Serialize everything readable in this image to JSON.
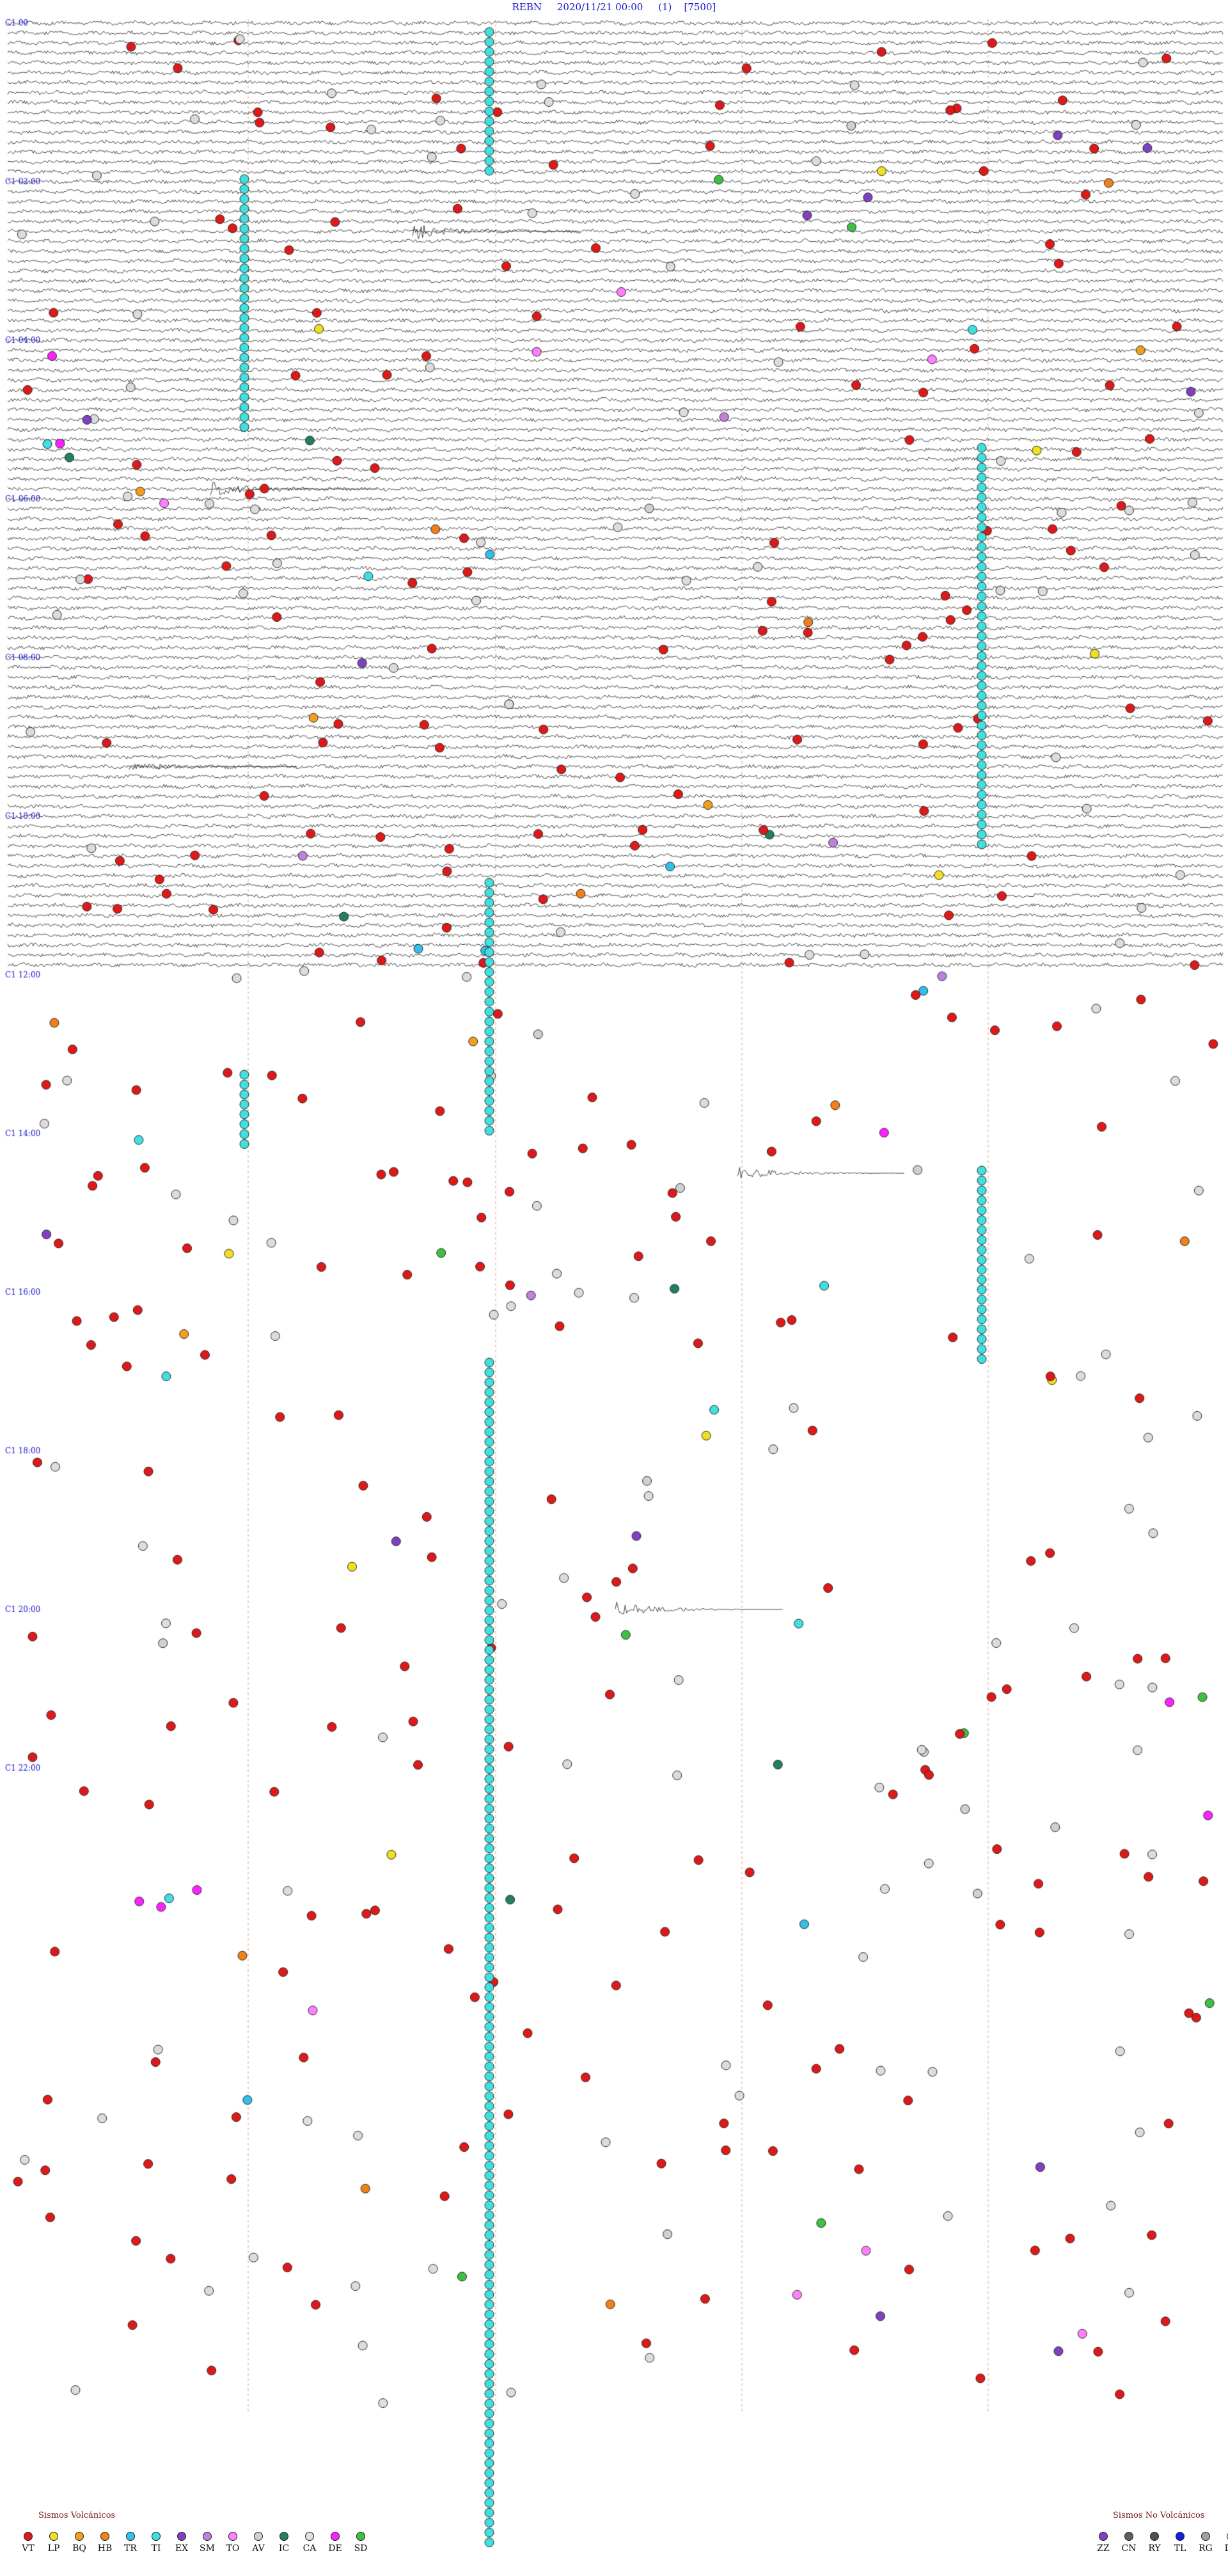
{
  "header": {
    "title": "REBN     2020/11/21 00:00     (1)    [7500]"
  },
  "chart_data": {
    "type": "seismogram",
    "station": "REBN",
    "date": "2020/11/21 00:00",
    "traces": 96,
    "hour_labels": [
      "00",
      "02:00",
      "04:00",
      "06:00",
      "08:00",
      "10:00",
      "12:00",
      "14:00",
      "16:00",
      "18:00",
      "20:00",
      "22:00"
    ],
    "events": [
      {
        "hour": 2.4,
        "minute": 20,
        "type": "VT",
        "amplitude": 0.9
      },
      {
        "hour": 5.8,
        "minute": 10,
        "type": "LP",
        "amplitude": 0.8
      },
      {
        "hour": 9.3,
        "minute": 6,
        "type": "TR",
        "amplitude": 0.6
      },
      {
        "hour": 14.2,
        "minute": 36,
        "type": "VT",
        "amplitude": 0.7
      },
      {
        "hour": 19.8,
        "minute": 30,
        "type": "HB",
        "amplitude": 0.8
      }
    ]
  },
  "legend_volcanic": {
    "title": "Sismos Volcánicos",
    "items": [
      {
        "label": "VT",
        "color": "#e01818"
      },
      {
        "label": "LP",
        "color": "#f0e020"
      },
      {
        "label": "BQ",
        "color": "#f0a020"
      },
      {
        "label": "HB",
        "color": "#f08018"
      },
      {
        "label": "TR",
        "color": "#30c0e8"
      },
      {
        "label": "TI",
        "color": "#40e0e0"
      },
      {
        "label": "EX",
        "color": "#8040c0"
      },
      {
        "label": "SM",
        "color": "#c080e0"
      },
      {
        "label": "TO",
        "color": "#ff80ff"
      },
      {
        "label": "AV",
        "color": "#d0d0d0"
      },
      {
        "label": "IC",
        "color": "#208060"
      },
      {
        "label": "CA",
        "color": "#e0e0e0"
      },
      {
        "label": "DE",
        "color": "#ff20ff"
      },
      {
        "label": "SD",
        "color": "#40c040"
      }
    ]
  },
  "legend_nonvolcanic": {
    "title": "Sismos No Volcánicos",
    "items": [
      {
        "label": "ZZ",
        "color": "#8040c0"
      },
      {
        "label": "CN",
        "color": "#606060"
      },
      {
        "label": "RY",
        "color": "#505050"
      },
      {
        "label": "TL",
        "color": "#1020e0"
      },
      {
        "label": "RG",
        "color": "#a0a0a0"
      },
      {
        "label": "DS",
        "color": "#f0e020"
      }
    ]
  }
}
